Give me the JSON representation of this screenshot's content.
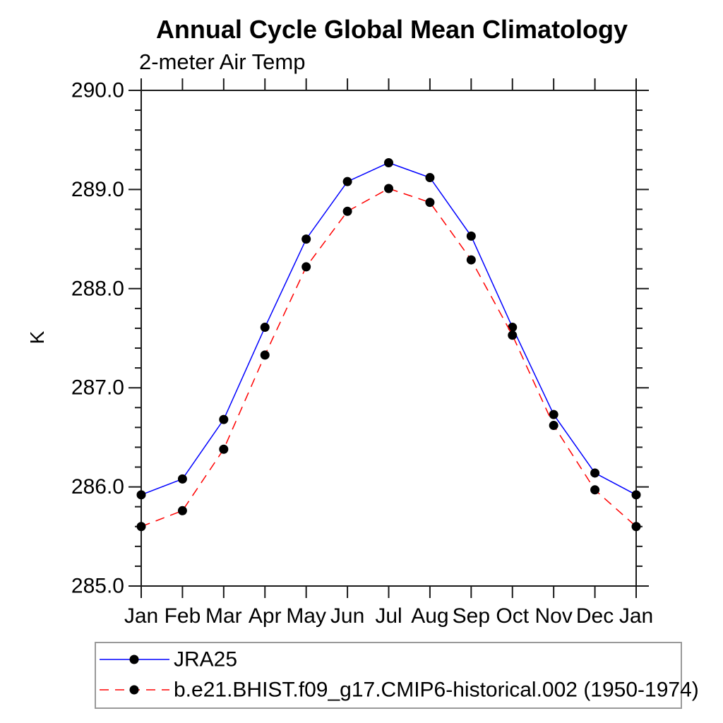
{
  "chart_data": {
    "type": "line",
    "title": "Annual Cycle Global Mean Climatology",
    "subtitle": "2-meter Air Temp",
    "xlabel": "",
    "ylabel": "K",
    "categories": [
      "Jan",
      "Feb",
      "Mar",
      "Apr",
      "May",
      "Jun",
      "Jul",
      "Aug",
      "Sep",
      "Oct",
      "Nov",
      "Dec",
      "Jan"
    ],
    "ylim": [
      285.0,
      290.0
    ],
    "ytick_major_interval": 1.0,
    "ytick_minor_interval": 0.2,
    "ytick_label_format": "one_decimal",
    "ytick_labels": [
      "285.0",
      "286.0",
      "287.0",
      "288.0",
      "289.0",
      "290.0"
    ],
    "grid": false,
    "legend_position": "bottom-left-outside",
    "series": [
      {
        "name": "JRA25",
        "color": "#0000ff",
        "line_style": "solid",
        "marker": "filled-circle",
        "marker_color": "#000000",
        "values": [
          285.92,
          286.08,
          286.68,
          287.61,
          288.5,
          289.08,
          289.27,
          289.12,
          288.53,
          287.61,
          286.73,
          286.14,
          285.92
        ]
      },
      {
        "name": "b.e21.BHIST.f09_g17.CMIP6-historical.002 (1950-1974)",
        "color": "#ff0000",
        "line_style": "dashed",
        "marker": "filled-circle",
        "marker_color": "#000000",
        "values": [
          285.6,
          285.76,
          286.38,
          287.33,
          288.22,
          288.78,
          289.01,
          288.87,
          288.29,
          287.53,
          286.62,
          285.97,
          285.6
        ]
      }
    ],
    "axis_color": "#1a1a1a"
  }
}
